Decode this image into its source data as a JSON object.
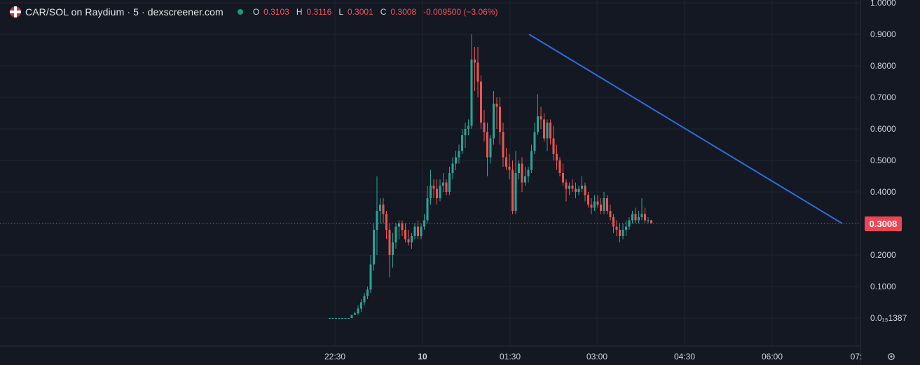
{
  "header": {
    "title": "CAR/SOL on Raydium · 5 · dexscreener.com",
    "ohlc": [
      {
        "key": "O",
        "value": "0.3103"
      },
      {
        "key": "H",
        "value": "0.3116"
      },
      {
        "key": "L",
        "value": "0.3001"
      },
      {
        "key": "C",
        "value": "0.3008"
      }
    ],
    "change": "-0.009500 (−3.06%)",
    "status_color": "#1f9b74"
  },
  "price_tag": "0.3008",
  "colors": {
    "up": "#26a69a",
    "down": "#ef5350",
    "trendline": "#2f6be0",
    "price_line": "#f04454"
  },
  "chart_data": {
    "type": "candlestick",
    "y_axis": {
      "range": [
        0,
        1.0
      ],
      "ticks": [
        "1.0000",
        "0.9000",
        "0.8000",
        "0.7000",
        "0.6000",
        "0.5000",
        "0.4000",
        "0.3000",
        "0.2000",
        "0.1000",
        "0.0₁₅1387"
      ],
      "tick_values": [
        1.0,
        0.9,
        0.8,
        0.7,
        0.6,
        0.5,
        0.4,
        0.3,
        0.2,
        0.1,
        0
      ]
    },
    "x_axis": {
      "ticks": [
        "22:30",
        "10",
        "01:30",
        "03:00",
        "04:30",
        "06:00",
        "07:"
      ]
    },
    "grid": true,
    "last_price": 0.3008,
    "candles": [
      [
        0,
        0,
        0,
        0
      ],
      [
        0,
        0,
        0,
        0
      ],
      [
        0,
        0,
        0,
        0
      ],
      [
        0,
        0,
        0,
        0
      ],
      [
        0,
        0,
        0,
        0
      ],
      [
        0,
        0,
        0,
        0
      ],
      [
        0,
        0,
        0,
        0
      ],
      [
        0,
        0.01,
        0,
        0.01
      ],
      [
        0.01,
        0.02,
        0.01,
        0.015
      ],
      [
        0.015,
        0.04,
        0.01,
        0.03
      ],
      [
        0.03,
        0.06,
        0.02,
        0.05
      ],
      [
        0.05,
        0.08,
        0.04,
        0.07
      ],
      [
        0.07,
        0.1,
        0.06,
        0.09
      ],
      [
        0.09,
        0.2,
        0.08,
        0.17
      ],
      [
        0.17,
        0.3,
        0.15,
        0.28
      ],
      [
        0.28,
        0.45,
        0.2,
        0.34
      ],
      [
        0.34,
        0.38,
        0.3,
        0.36
      ],
      [
        0.36,
        0.38,
        0.3,
        0.33
      ],
      [
        0.33,
        0.34,
        0.25,
        0.28
      ],
      [
        0.28,
        0.3,
        0.13,
        0.2
      ],
      [
        0.2,
        0.27,
        0.16,
        0.24
      ],
      [
        0.24,
        0.3,
        0.22,
        0.29
      ],
      [
        0.29,
        0.31,
        0.25,
        0.3
      ],
      [
        0.3,
        0.31,
        0.26,
        0.28
      ],
      [
        0.28,
        0.3,
        0.24,
        0.25
      ],
      [
        0.25,
        0.28,
        0.23,
        0.24
      ],
      [
        0.24,
        0.27,
        0.22,
        0.26
      ],
      [
        0.26,
        0.3,
        0.25,
        0.29
      ],
      [
        0.29,
        0.31,
        0.25,
        0.26
      ],
      [
        0.26,
        0.3,
        0.25,
        0.29
      ],
      [
        0.29,
        0.33,
        0.28,
        0.31
      ],
      [
        0.31,
        0.42,
        0.3,
        0.38
      ],
      [
        0.38,
        0.47,
        0.36,
        0.42
      ],
      [
        0.42,
        0.44,
        0.38,
        0.41
      ],
      [
        0.41,
        0.44,
        0.36,
        0.38
      ],
      [
        0.38,
        0.44,
        0.37,
        0.42
      ],
      [
        0.42,
        0.46,
        0.4,
        0.43
      ],
      [
        0.43,
        0.44,
        0.39,
        0.4
      ],
      [
        0.4,
        0.48,
        0.39,
        0.46
      ],
      [
        0.46,
        0.51,
        0.44,
        0.49
      ],
      [
        0.49,
        0.53,
        0.47,
        0.51
      ],
      [
        0.51,
        0.55,
        0.49,
        0.53
      ],
      [
        0.53,
        0.6,
        0.52,
        0.58
      ],
      [
        0.58,
        0.62,
        0.54,
        0.6
      ],
      [
        0.6,
        0.63,
        0.58,
        0.61
      ],
      [
        0.61,
        0.9,
        0.6,
        0.82
      ],
      [
        0.82,
        0.86,
        0.72,
        0.81
      ],
      [
        0.81,
        0.86,
        0.7,
        0.75
      ],
      [
        0.75,
        0.77,
        0.6,
        0.62
      ],
      [
        0.62,
        0.66,
        0.56,
        0.59
      ],
      [
        0.59,
        0.62,
        0.45,
        0.51
      ],
      [
        0.51,
        0.58,
        0.49,
        0.57
      ],
      [
        0.57,
        0.72,
        0.55,
        0.68
      ],
      [
        0.68,
        0.7,
        0.6,
        0.67
      ],
      [
        0.67,
        0.7,
        0.55,
        0.59
      ],
      [
        0.59,
        0.62,
        0.48,
        0.51
      ],
      [
        0.51,
        0.54,
        0.47,
        0.48
      ],
      [
        0.48,
        0.52,
        0.44,
        0.47
      ],
      [
        0.47,
        0.5,
        0.33,
        0.34
      ],
      [
        0.34,
        0.53,
        0.33,
        0.46
      ],
      [
        0.46,
        0.5,
        0.44,
        0.49
      ],
      [
        0.49,
        0.51,
        0.4,
        0.43
      ],
      [
        0.43,
        0.48,
        0.42,
        0.45
      ],
      [
        0.45,
        0.48,
        0.43,
        0.47
      ],
      [
        0.47,
        0.55,
        0.46,
        0.53
      ],
      [
        0.53,
        0.62,
        0.52,
        0.59
      ],
      [
        0.59,
        0.71,
        0.58,
        0.64
      ],
      [
        0.64,
        0.67,
        0.6,
        0.63
      ],
      [
        0.63,
        0.65,
        0.56,
        0.57
      ],
      [
        0.57,
        0.63,
        0.53,
        0.62
      ],
      [
        0.62,
        0.63,
        0.55,
        0.57
      ],
      [
        0.57,
        0.61,
        0.5,
        0.52
      ],
      [
        0.52,
        0.55,
        0.47,
        0.5
      ],
      [
        0.5,
        0.51,
        0.45,
        0.46
      ],
      [
        0.46,
        0.49,
        0.42,
        0.43
      ],
      [
        0.43,
        0.44,
        0.37,
        0.41
      ],
      [
        0.41,
        0.43,
        0.39,
        0.42
      ],
      [
        0.42,
        0.44,
        0.4,
        0.41
      ],
      [
        0.41,
        0.43,
        0.38,
        0.4
      ],
      [
        0.4,
        0.42,
        0.39,
        0.41
      ],
      [
        0.41,
        0.45,
        0.4,
        0.42
      ],
      [
        0.42,
        0.43,
        0.37,
        0.39
      ],
      [
        0.39,
        0.4,
        0.35,
        0.36
      ],
      [
        0.36,
        0.38,
        0.33,
        0.35
      ],
      [
        0.35,
        0.39,
        0.34,
        0.37
      ],
      [
        0.37,
        0.39,
        0.35,
        0.36
      ],
      [
        0.36,
        0.38,
        0.33,
        0.34
      ],
      [
        0.34,
        0.4,
        0.33,
        0.38
      ],
      [
        0.38,
        0.39,
        0.33,
        0.34
      ],
      [
        0.34,
        0.36,
        0.31,
        0.32
      ],
      [
        0.32,
        0.33,
        0.27,
        0.29
      ],
      [
        0.29,
        0.31,
        0.26,
        0.28
      ],
      [
        0.28,
        0.3,
        0.24,
        0.26
      ],
      [
        0.26,
        0.3,
        0.25,
        0.28
      ],
      [
        0.28,
        0.31,
        0.26,
        0.29
      ],
      [
        0.29,
        0.32,
        0.28,
        0.31
      ],
      [
        0.31,
        0.34,
        0.3,
        0.33
      ],
      [
        0.33,
        0.35,
        0.3,
        0.31
      ],
      [
        0.31,
        0.34,
        0.3,
        0.32
      ],
      [
        0.32,
        0.38,
        0.31,
        0.33
      ],
      [
        0.33,
        0.35,
        0.3,
        0.31
      ],
      [
        0.31,
        0.32,
        0.3,
        0.3103
      ],
      [
        0.3103,
        0.3116,
        0.3001,
        0.3008
      ]
    ],
    "trendline": [
      {
        "time": "01:30+",
        "value": 0.9
      },
      {
        "time": "06:45",
        "value": 0.3
      }
    ]
  }
}
